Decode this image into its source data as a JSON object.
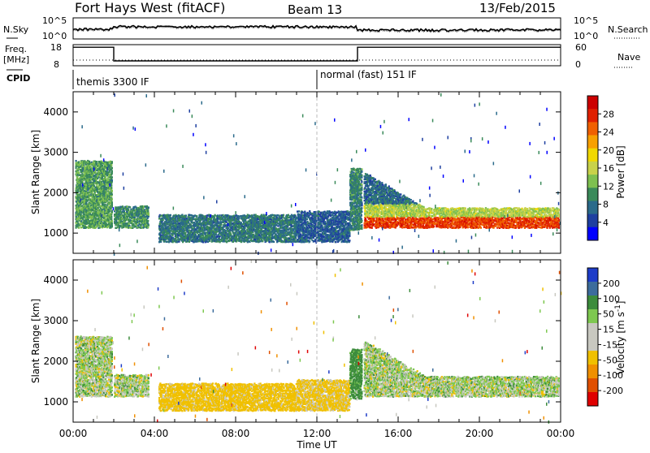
{
  "header": {
    "station": "Fort Hays West (fitACF)",
    "beam": "Beam 13",
    "date": "13/Feb/2015"
  },
  "strip": {
    "nsky_label": "N.Sky",
    "nsearch_label": "N.Search",
    "nsky_ticks": [
      "10^5",
      "10^0"
    ],
    "nsearch_ticks": [
      "10^5",
      "10^0"
    ],
    "freq_label_1": "Freq.",
    "freq_label_2": "[MHz]",
    "freq_ticks": [
      "18",
      "8"
    ],
    "nave_label": "Nave",
    "nave_ticks": [
      "60",
      "0"
    ],
    "cpid_label": "CPID",
    "cpid_modes": [
      {
        "name": "themis 3300 IF",
        "start": 0.0,
        "end": 12.0
      },
      {
        "name": "normal (fast) 151 IF",
        "start": 12.0,
        "end": 24.0
      }
    ],
    "freq_steps": [
      {
        "start": 0.0,
        "end": 2.0,
        "value": 17.5
      },
      {
        "start": 2.0,
        "end": 14.0,
        "value": 10.5
      },
      {
        "start": 14.0,
        "end": 24.0,
        "value": 17.5
      }
    ]
  },
  "xaxis": {
    "title": "Time UT",
    "ticks": [
      "00:00",
      "04:00",
      "08:00",
      "12:00",
      "16:00",
      "20:00",
      "00:00"
    ]
  },
  "colors": {
    "power_scale": [
      "#0000ff",
      "#1e3fa0",
      "#2a6a8a",
      "#3a8a5a",
      "#7ec050",
      "#c8d24a",
      "#f0d800",
      "#f8a000",
      "#f06000",
      "#e02000",
      "#cc0000"
    ],
    "velocity_scale": [
      "#1e3cc8",
      "#3c6c9c",
      "#3c8c3c",
      "#7ec850",
      "#c8c8c0",
      "#c8c8c0",
      "#f0c000",
      "#f09000",
      "#e05000",
      "#e00000"
    ]
  },
  "chart_data": [
    {
      "type": "heatmap",
      "title": "",
      "xlabel": "",
      "ylabel": "Slant Range [km]",
      "xlim": [
        0,
        24
      ],
      "ylim": [
        500,
        4500
      ],
      "yticks": [
        "1000",
        "2000",
        "3000",
        "4000"
      ],
      "colorbar_label": "Power [dB]",
      "colorbar_ticks": [
        "28",
        "24",
        "20",
        "16",
        "12",
        "8",
        "4"
      ],
      "colorbar_range": [
        0,
        30
      ],
      "bands": [
        {
          "start": 0.1,
          "end": 1.9,
          "low": 1150,
          "high": 2800,
          "power": 10
        },
        {
          "start": 2.0,
          "end": 3.7,
          "low": 1150,
          "high": 1650,
          "power": 9
        },
        {
          "start": 4.2,
          "end": 11.0,
          "low": 800,
          "high": 1450,
          "power": 7
        },
        {
          "start": 11.0,
          "end": 13.6,
          "low": 800,
          "high": 1550,
          "power": 5
        },
        {
          "start": 13.6,
          "end": 14.2,
          "low": 1100,
          "high": 2600,
          "power": 8
        },
        {
          "start": 14.3,
          "end": 23.9,
          "low": 1150,
          "high": 2500,
          "power": 22
        }
      ]
    },
    {
      "type": "heatmap",
      "title": "",
      "xlabel": "Time UT",
      "ylabel": "Slant Range [km]",
      "xlim": [
        0,
        24
      ],
      "ylim": [
        500,
        4500
      ],
      "yticks": [
        "1000",
        "2000",
        "3000",
        "4000"
      ],
      "colorbar_label": "Velocity [m s^-1]",
      "colorbar_ticks": [
        "200",
        "100",
        "50",
        "15",
        "-15",
        "-50",
        "-100",
        "-200"
      ],
      "colorbar_range": [
        -250,
        250
      ],
      "bands": [
        {
          "start": 0.1,
          "end": 1.9,
          "low": 1150,
          "high": 2600,
          "velocity": 0
        },
        {
          "start": 2.0,
          "end": 3.7,
          "low": 1150,
          "high": 1650,
          "velocity": 0
        },
        {
          "start": 4.2,
          "end": 11.0,
          "low": 800,
          "high": 1450,
          "velocity": -30
        },
        {
          "start": 11.0,
          "end": 13.6,
          "low": 800,
          "high": 1550,
          "velocity": -25
        },
        {
          "start": 13.6,
          "end": 14.2,
          "low": 1100,
          "high": 2300,
          "velocity": 30
        },
        {
          "start": 14.3,
          "end": 23.9,
          "low": 1150,
          "high": 2500,
          "velocity": 0
        }
      ]
    }
  ]
}
